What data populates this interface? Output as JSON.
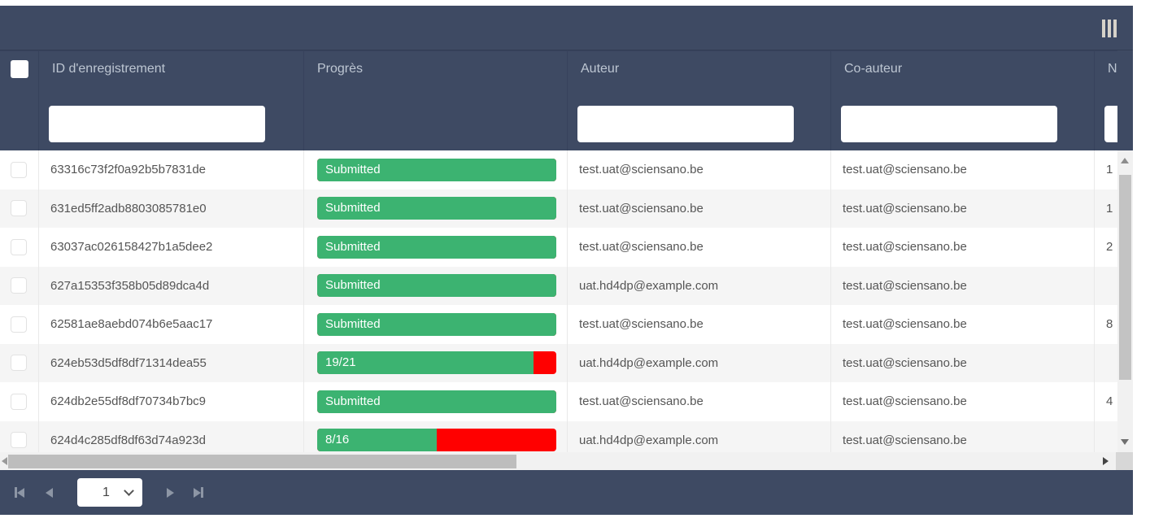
{
  "toolbar": {
    "columns_button_icon": "columns-icon"
  },
  "grid": {
    "columns": [
      {
        "key": "select",
        "label": ""
      },
      {
        "key": "id",
        "label": "ID d'enregistrement",
        "has_filter": true
      },
      {
        "key": "progress",
        "label": "Progrès",
        "has_filter": false
      },
      {
        "key": "author",
        "label": "Auteur",
        "has_filter": true
      },
      {
        "key": "coauthor",
        "label": "Co-auteur",
        "has_filter": true
      },
      {
        "key": "n",
        "label": "N",
        "has_filter": true
      }
    ],
    "filters": {
      "id": "",
      "author": "",
      "coauthor": "",
      "n": ""
    },
    "rows": [
      {
        "id": "63316c73f2f0a92b5b7831de",
        "progress_label": "Submitted",
        "progress_pct": 100,
        "author": "test.uat@sciensano.be",
        "coauthor": "test.uat@sciensano.be",
        "n": "1"
      },
      {
        "id": "631ed5ff2adb8803085781e0",
        "progress_label": "Submitted",
        "progress_pct": 100,
        "author": "test.uat@sciensano.be",
        "coauthor": "test.uat@sciensano.be",
        "n": "1"
      },
      {
        "id": "63037ac026158427b1a5dee2",
        "progress_label": "Submitted",
        "progress_pct": 100,
        "author": "test.uat@sciensano.be",
        "coauthor": "test.uat@sciensano.be",
        "n": "2"
      },
      {
        "id": "627a15353f358b05d89dca4d",
        "progress_label": "Submitted",
        "progress_pct": 100,
        "author": "uat.hd4dp@example.com",
        "coauthor": "test.uat@sciensano.be",
        "n": ""
      },
      {
        "id": "62581ae8aebd074b6e5aac17",
        "progress_label": "Submitted",
        "progress_pct": 100,
        "author": "test.uat@sciensano.be",
        "coauthor": "test.uat@sciensano.be",
        "n": "8"
      },
      {
        "id": "624eb53d5df8df71314dea55",
        "progress_label": "19/21",
        "progress_pct": 90.5,
        "author": "uat.hd4dp@example.com",
        "coauthor": "test.uat@sciensano.be",
        "n": ""
      },
      {
        "id": "624db2e55df8df70734b7bc9",
        "progress_label": "Submitted",
        "progress_pct": 100,
        "author": "test.uat@sciensano.be",
        "coauthor": "test.uat@sciensano.be",
        "n": "4"
      },
      {
        "id": "624d4c285df8df63d74a923d",
        "progress_label": "8/16",
        "progress_pct": 50,
        "author": "uat.hd4dp@example.com",
        "coauthor": "test.uat@sciensano.be",
        "n": ""
      }
    ]
  },
  "pager": {
    "page_value": "1"
  },
  "colors": {
    "header_bg": "#3e4a63",
    "header_text": "#bdc6d2",
    "progress_done": "#3cb371",
    "progress_remaining": "#ff0000",
    "row_alt_bg": "#f5f5f5",
    "cell_text": "#555555"
  }
}
